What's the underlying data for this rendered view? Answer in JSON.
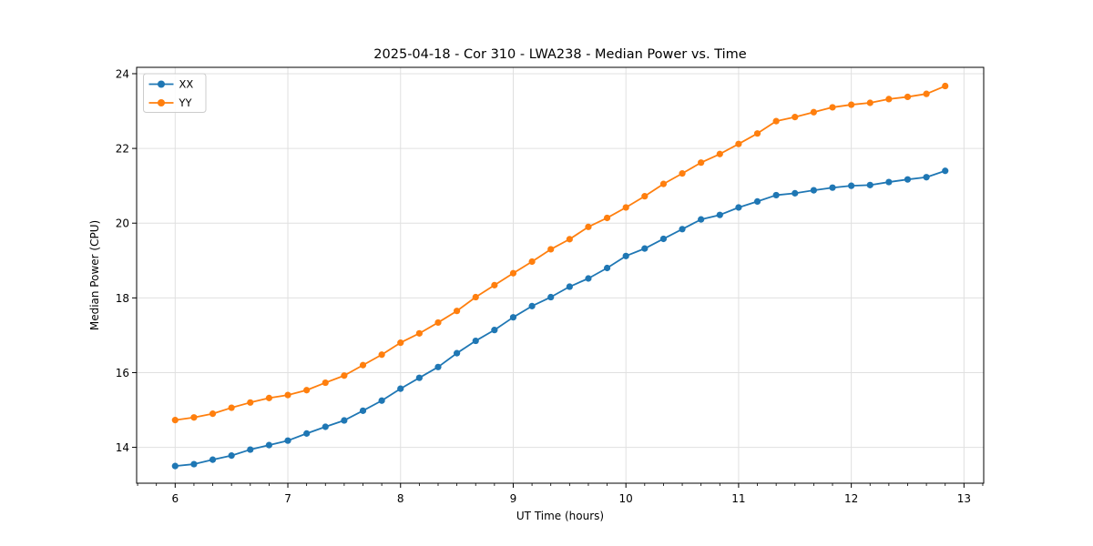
{
  "figure": {
    "background": "#ffffff",
    "border_color": "#000000",
    "grid_color": "#e0e0e0"
  },
  "chart_data": {
    "type": "line",
    "title": "2025-04-18 - Cor 310 - LWA238 - Median Power vs. Time",
    "xlabel": "UT Time (hours)",
    "ylabel": "Median Power (CPU)",
    "xlim": [
      5.658,
      13.175
    ],
    "ylim": [
      13.04,
      24.17
    ],
    "xticks": [
      6,
      7,
      8,
      9,
      10,
      11,
      12,
      13
    ],
    "yticks": [
      14,
      16,
      18,
      20,
      22,
      24
    ],
    "x_minor_tick_step_hours": 0.1667,
    "grid": true,
    "legend": {
      "position": "upper-left",
      "entries": [
        "XX",
        "YY"
      ]
    },
    "x": [
      6.0,
      6.1667,
      6.3333,
      6.5,
      6.6667,
      6.8333,
      7.0,
      7.1667,
      7.3333,
      7.5,
      7.6667,
      7.8333,
      8.0,
      8.1667,
      8.3333,
      8.5,
      8.6667,
      8.8333,
      9.0,
      9.1667,
      9.3333,
      9.5,
      9.6667,
      9.8333,
      10.0,
      10.1667,
      10.3333,
      10.5,
      10.6667,
      10.8333,
      11.0,
      11.1667,
      11.3333,
      11.5,
      11.6667,
      11.8333,
      12.0,
      12.1667,
      12.3333,
      12.5,
      12.6667,
      12.8333
    ],
    "series": [
      {
        "name": "XX",
        "color": "#1f77b4",
        "marker": "circle",
        "values": [
          13.5,
          13.55,
          13.67,
          13.78,
          13.94,
          14.06,
          14.18,
          14.37,
          14.55,
          14.72,
          14.98,
          15.25,
          15.57,
          15.86,
          16.15,
          16.52,
          16.85,
          17.14,
          17.48,
          17.78,
          18.02,
          18.3,
          18.52,
          18.8,
          19.12,
          19.32,
          19.58,
          19.84,
          20.1,
          20.22,
          20.42,
          20.58,
          20.75,
          20.8,
          20.88,
          20.95,
          21.0,
          21.02,
          21.1,
          21.17,
          21.23,
          21.4
        ]
      },
      {
        "name": "YY",
        "color": "#ff7f0e",
        "marker": "circle",
        "values": [
          14.73,
          14.8,
          14.9,
          15.06,
          15.2,
          15.32,
          15.4,
          15.53,
          15.73,
          15.92,
          16.2,
          16.48,
          16.8,
          17.05,
          17.34,
          17.65,
          18.02,
          18.34,
          18.66,
          18.97,
          19.3,
          19.57,
          19.9,
          20.14,
          20.42,
          20.72,
          21.05,
          21.33,
          21.62,
          21.85,
          22.12,
          22.4,
          22.73,
          22.84,
          22.97,
          23.1,
          23.17,
          23.22,
          23.32,
          23.38,
          23.46,
          23.67
        ]
      }
    ]
  }
}
